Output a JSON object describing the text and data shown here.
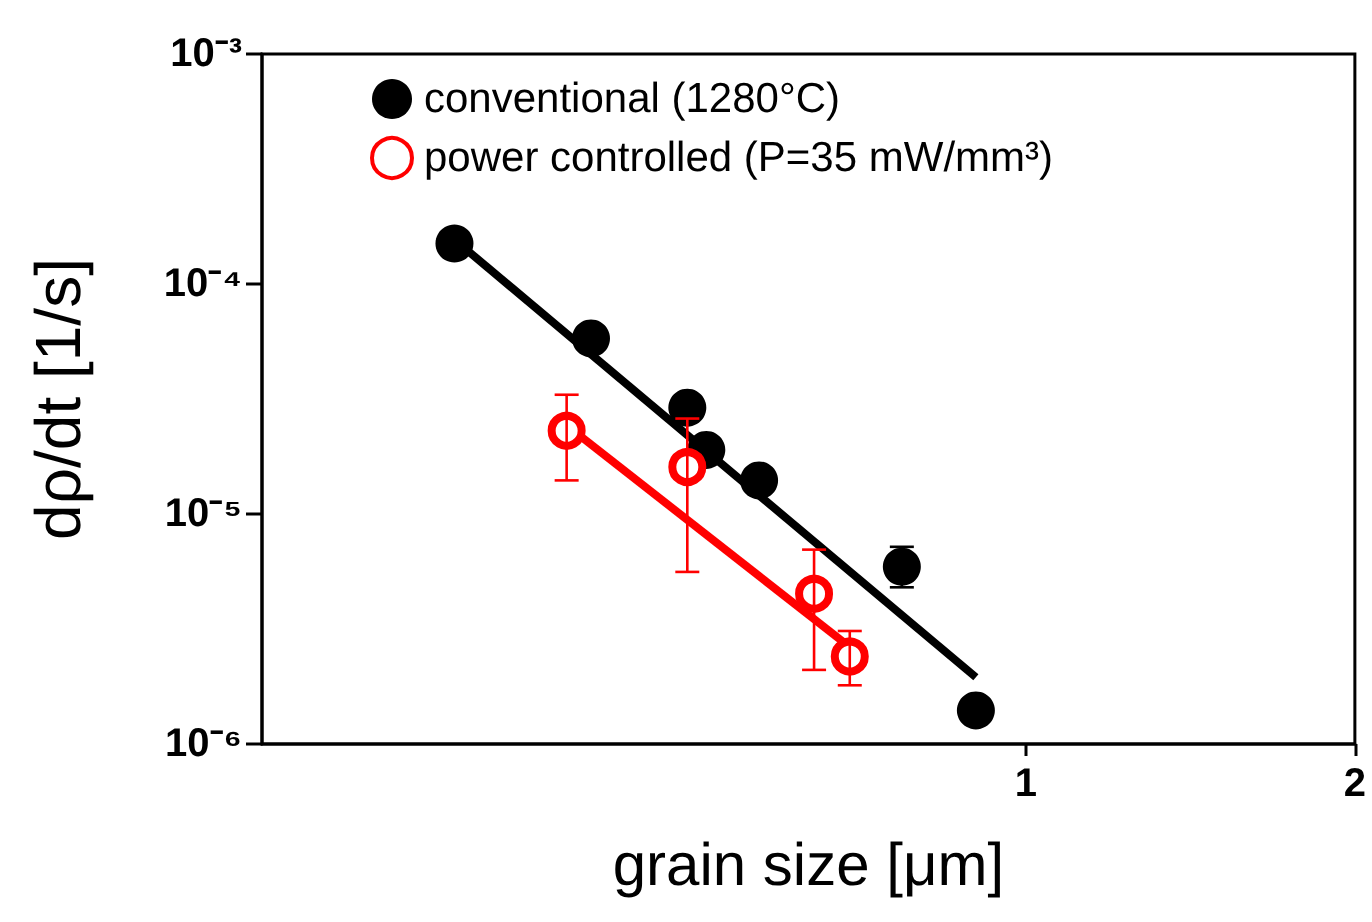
{
  "chart_data": {
    "type": "scatter",
    "xlabel": "grain size [μm]",
    "ylabel": "dρ/dt [1/s]",
    "log": "xy",
    "xlim": [
      0.2,
      2
    ],
    "xticks": [
      1,
      2
    ],
    "ylim": [
      1e-06,
      0.001
    ],
    "yticks": [
      {
        "value": 1e-06,
        "label": "10⁻⁶"
      },
      {
        "value": 1e-05,
        "label": "10⁻⁵"
      },
      {
        "value": 0.0001,
        "label": "10⁻⁴"
      },
      {
        "value": 0.001,
        "label": "10⁻³"
      }
    ],
    "legend": "top left",
    "grid": false,
    "marker": "circle",
    "series": [
      {
        "name": "conventional (1280°C)",
        "color": "#000000",
        "x": [
          0.3,
          0.4,
          0.49,
          0.51,
          0.57,
          0.77,
          0.9
        ],
        "values": [
          0.00015,
          5.8e-05,
          2.9e-05,
          1.9e-05,
          1.4e-05,
          5.9e-06,
          1.4e-06
        ],
        "errors": [
          null,
          null,
          null,
          null,
          null,
          [
            4.8e-06,
            7.2e-06
          ],
          null
        ]
      },
      {
        "name": "power controlled (P=35 mW/mm³)",
        "color": "#ff0000",
        "x": [
          0.38,
          0.49,
          0.64,
          0.69
        ],
        "values": [
          2.3e-05,
          1.6e-05,
          4.5e-06,
          2.4e-06
        ],
        "errors": [
          [
            1.4e-05,
            3.3e-05
          ],
          [
            5.6e-06,
            2.6e-05
          ],
          [
            2.1e-06,
            7e-06
          ],
          [
            1.8e-06,
            3.1e-06
          ]
        ]
      },
      {
        "type": "line",
        "marker": "none",
        "color": "#000000",
        "x": [
          0.305,
          0.9
        ],
        "values": [
          0.000146,
          1.95e-06
        ]
      },
      {
        "type": "line",
        "marker": "none",
        "color": "#ff0000",
        "x": [
          0.38,
          0.7
        ],
        "values": [
          2.43e-05,
          2.5e-06
        ]
      }
    ]
  }
}
